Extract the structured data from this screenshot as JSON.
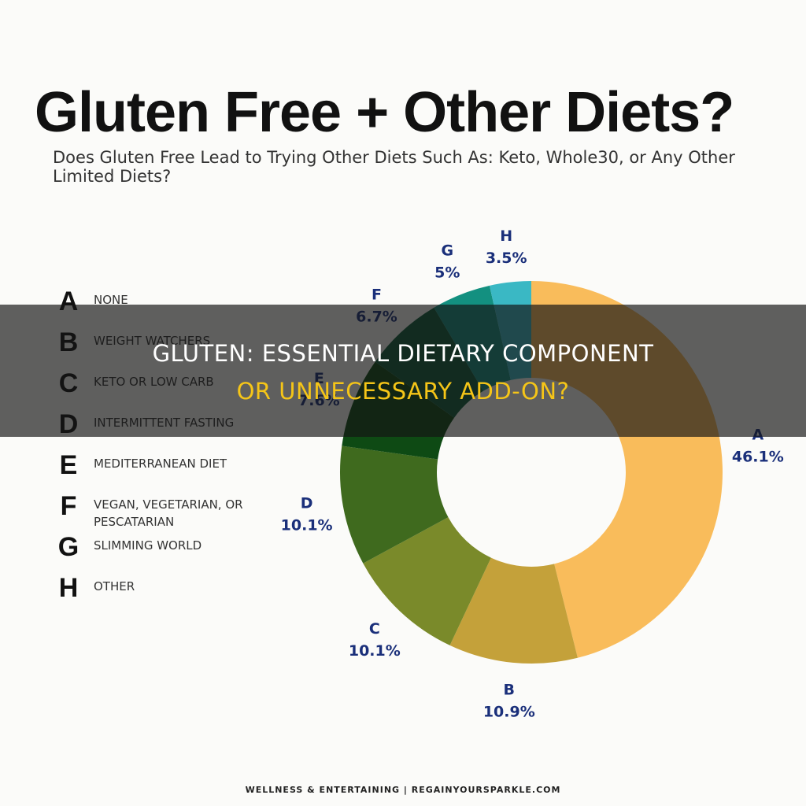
{
  "chart_data": {
    "type": "pie",
    "donut": true,
    "title": "Gluten Free + Other Diets?",
    "subtitle": "Does Gluten Free Lead to Trying Other Diets Such As: Keto, Whole30, or Any Other Limited Diets?",
    "categories": [
      "A",
      "B",
      "C",
      "D",
      "E",
      "F",
      "G",
      "H"
    ],
    "descriptions": [
      "NONE",
      "WEIGHT WATCHERS",
      "KETO OR LOW CARB",
      "INTERMITTENT FASTING",
      "MEDITERRANEAN DIET",
      "VEGAN, VEGETARIAN, OR PESCATARIAN",
      "SLIMMING WORLD",
      "OTHER"
    ],
    "values": [
      46.1,
      10.9,
      10.1,
      10.1,
      7.6,
      6.7,
      5,
      3.5
    ],
    "value_labels": [
      "46.1%",
      "10.9%",
      "10.1%",
      "10.1%",
      "7.6%",
      "6.7%",
      "5%",
      "3.5%"
    ],
    "colors": [
      "#f9bc5b",
      "#c4a13a",
      "#7a8a2a",
      "#3f6a1e",
      "#0e4a14",
      "#0d5a3a",
      "#139080",
      "#3ab8c4"
    ]
  },
  "banner": {
    "line1": "GLUTEN: ESSENTIAL DIETARY COMPONENT",
    "line2": "OR UNNECESSARY ADD-ON?"
  },
  "footer": "WELLNESS & ENTERTAINING | REGAINYOURSPARKLE.COM"
}
